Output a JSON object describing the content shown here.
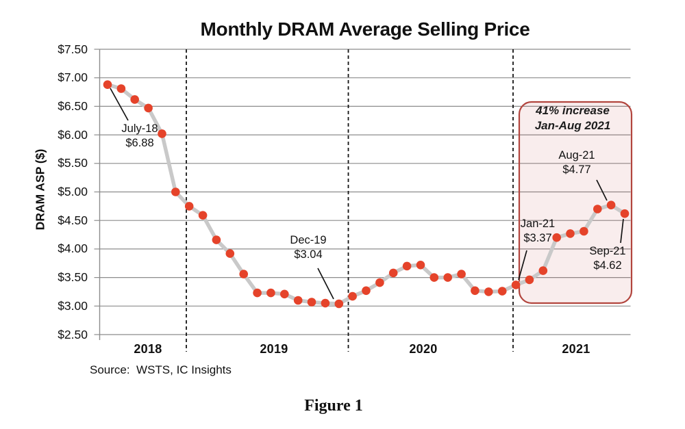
{
  "title": "Monthly DRAM Average Selling Price",
  "source_note": "Source:  WSTS, IC Insights",
  "figure_caption": "Figure 1",
  "chart_data": {
    "type": "line",
    "title": "Monthly DRAM Average Selling Price",
    "ylabel": "DRAM ASP ($)",
    "ylim": [
      2.5,
      7.5
    ],
    "ytick_step": 0.5,
    "ytick_labels": [
      "$7.50",
      "$7.00",
      "$6.50",
      "$6.00",
      "$5.50",
      "$5.00",
      "$4.50",
      "$4.00",
      "$3.50",
      "$3.00",
      "$2.50"
    ],
    "grid": true,
    "legend": "none",
    "x": [
      "Jul-18",
      "Aug-18",
      "Sep-18",
      "Oct-18",
      "Nov-18",
      "Dec-18",
      "Jan-19",
      "Feb-19",
      "Mar-19",
      "Apr-19",
      "May-19",
      "Jun-19",
      "Jul-19",
      "Aug-19",
      "Sep-19",
      "Oct-19",
      "Nov-19",
      "Dec-19",
      "Jan-20",
      "Feb-20",
      "Mar-20",
      "Apr-20",
      "May-20",
      "Jun-20",
      "Jul-20",
      "Aug-20",
      "Sep-20",
      "Oct-20",
      "Nov-20",
      "Dec-20",
      "Jan-21",
      "Feb-21",
      "Mar-21",
      "Apr-21",
      "May-21",
      "Jun-21",
      "Jul-21",
      "Aug-21",
      "Sep-21"
    ],
    "values": [
      6.88,
      6.81,
      6.62,
      6.47,
      6.02,
      5.0,
      4.75,
      4.59,
      4.16,
      3.92,
      3.56,
      3.23,
      3.23,
      3.21,
      3.1,
      3.07,
      3.05,
      3.04,
      3.17,
      3.27,
      3.41,
      3.58,
      3.7,
      3.72,
      3.5,
      3.5,
      3.56,
      3.27,
      3.25,
      3.26,
      3.37,
      3.46,
      3.62,
      4.2,
      4.27,
      4.31,
      4.7,
      4.77,
      4.62
    ],
    "year_labels": [
      "2018",
      "2019",
      "2020",
      "2021"
    ],
    "year_dividers_before": [
      "Jan-19",
      "Jan-20",
      "Jan-21"
    ],
    "line_color": "#c9c9c9",
    "marker_color": "#e5432a",
    "gridline_color": "#8c8c8c",
    "annotations": [
      {
        "month": "Jul-18",
        "label": "July-18",
        "value_text": "$6.88"
      },
      {
        "month": "Dec-19",
        "label": "Dec-19",
        "value_text": "$3.04"
      },
      {
        "month": "Jan-21",
        "label": "Jan-21",
        "value_text": "$3.37"
      },
      {
        "month": "Aug-21",
        "label": "Aug-21",
        "value_text": "$4.77"
      },
      {
        "month": "Sep-21",
        "label": "Sep-21",
        "value_text": "$4.62"
      }
    ],
    "highlight_box": {
      "label_line1": "41% increase",
      "label_line2": "Jan-Aug 2021",
      "from_month": "Jan-21",
      "to_month": "Sep-21",
      "border_color": "#b2453e",
      "fill_color": "rgba(192,80,77,0.10)"
    }
  }
}
